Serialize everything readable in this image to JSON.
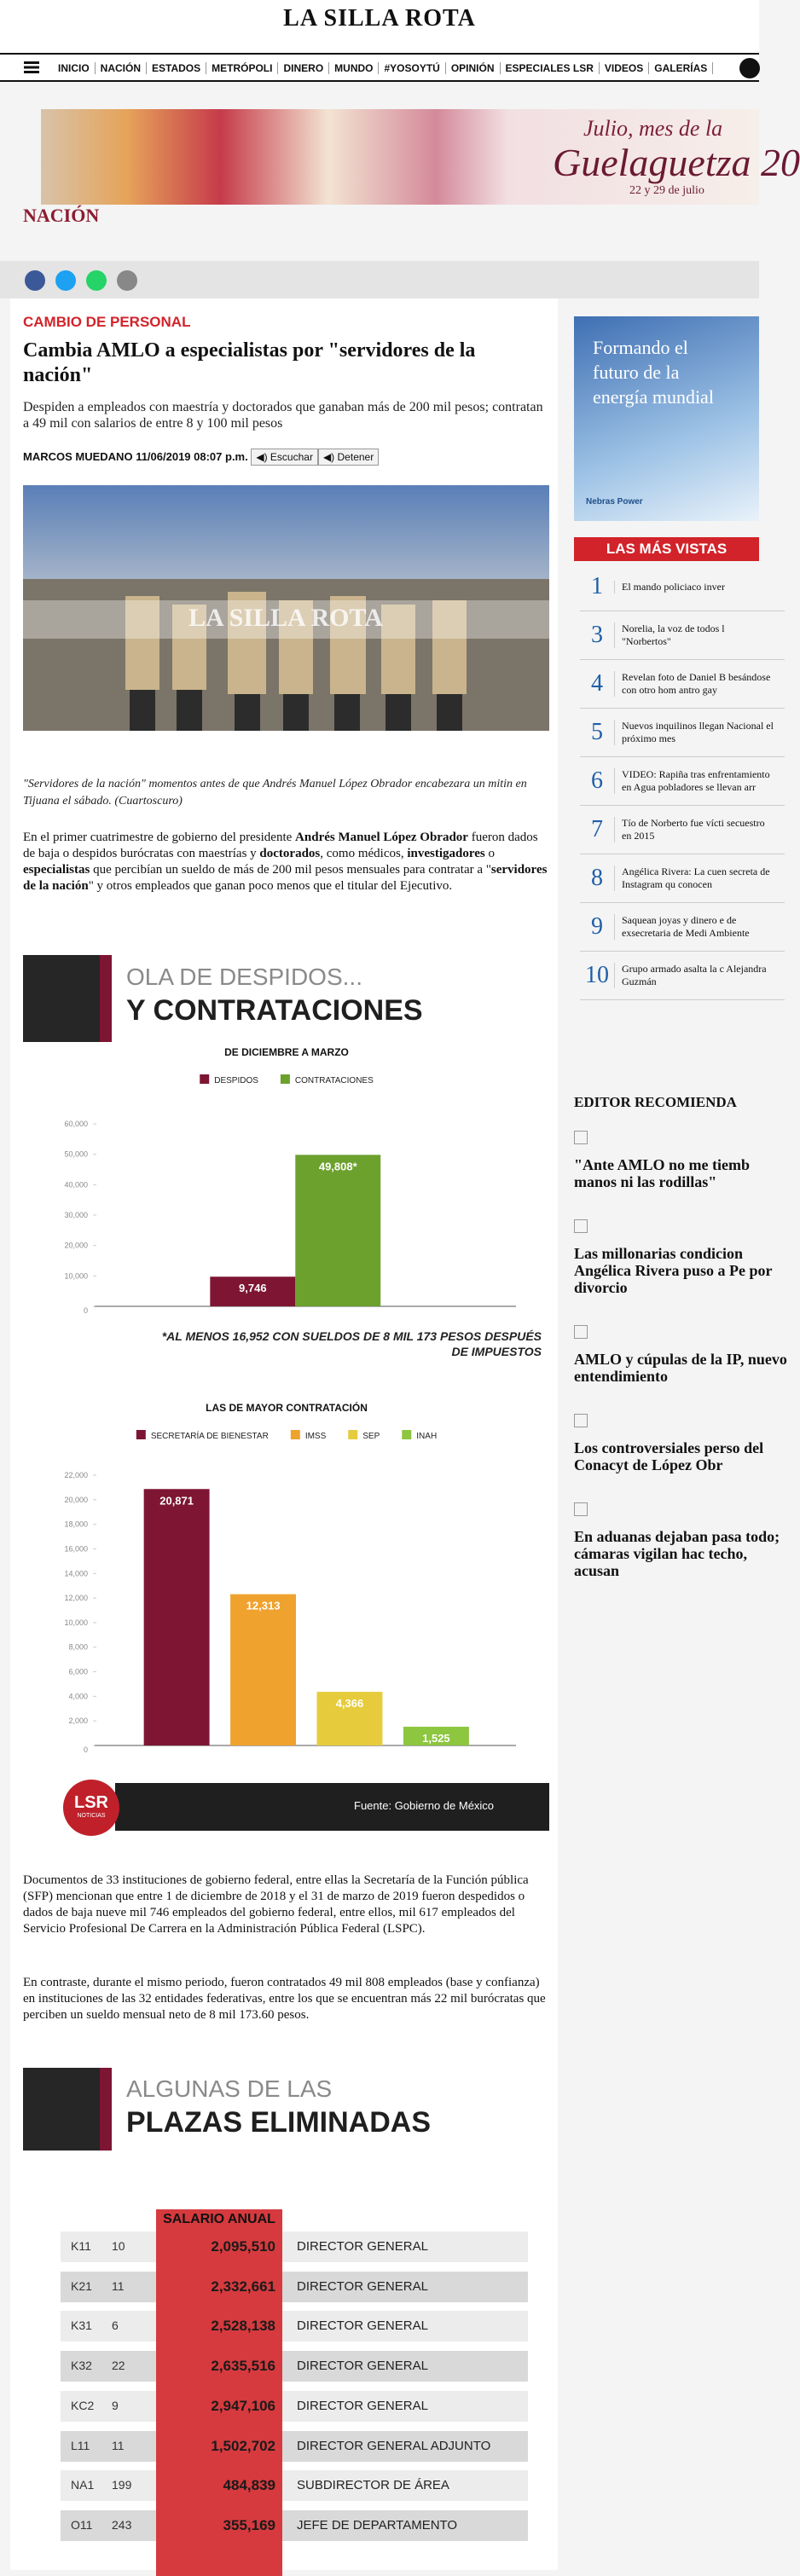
{
  "header": {
    "logo": "LA SILLA ROTA",
    "nav": [
      "INICIO",
      "NACIÓN",
      "ESTADOS",
      "METRÓPOLI",
      "DINERO",
      "MUNDO",
      "#YOSOYTÚ",
      "OPINIÓN",
      "ESPECIALES LSR",
      "VIDEOS",
      "GALERÍAS"
    ]
  },
  "banner": {
    "lines": [
      "Julio, mes de la",
      "Guelaguetza 20",
      "22 y 29 de julio"
    ]
  },
  "section": "NACIÓN",
  "article": {
    "kicker": "CAMBIO DE PERSONAL",
    "title": "Cambia AMLO a especialistas por \"servidores de la nación\"",
    "summary": "Despiden a empleados con maestría y doctorados que ganaban más de 200 mil pesos; contratan a 49 mil con salarios de entre 8 y 100 mil pesos",
    "author": "MARCOS MUEDANO",
    "date": "11/06/2019 08:07 p.m.",
    "buttons": [
      "Escuchar",
      "Detener"
    ],
    "photo_watermark": "LA SILLA ROTA",
    "caption": "\"Servidores de la nación\" momentos antes de que Andrés Manuel López Obrador encabezara un mitin en Tijuana el sábado. (Cuartoscuro)",
    "paragraphs": [
      [
        "En el primer cuatrimestre de gobierno del presidente ",
        "Andrés Manuel López Obrador",
        " fueron dados de baja o despidos burócratas con maestrías y ",
        "doctorados",
        ", como médicos, ",
        "investigadores",
        " o ",
        "especialistas",
        " que percibían un sueldo de más de 200 mil pesos mensuales para contratar a \"",
        "servidores de la nación",
        "\" y otros empleados que ganan poco menos que el titular del Ejecutivo."
      ],
      [
        "Documentos de 33 instituciones de gobierno federal, entre ellas la Secretaría de la Función pública (SFP) mencionan que entre 1 de diciembre de 2018 y el 31 de marzo de 2019 fueron despedidos o dados de baja nueve mil 746 empleados del gobierno federal, entre ellos, mil 617 empleados del Servicio Profesional De Carrera en la Administración Pública Federal (LSPC)."
      ],
      [
        "En contraste, durante el mismo periodo, fueron contratados 49 mil 808 empleados (base y confianza) en instituciones de las 32 entidades federativas, entre los que se encuentran más 22 mil burócratas que perciben un sueldo mensual neto de 8 mil 173.60 pesos."
      ]
    ]
  },
  "infographics": [
    {
      "title": [
        "OLA DE DESPIDOS...",
        "Y CONTRATACIONES"
      ],
      "note": "*AL MENOS 16,952 CON SUELDOS DE 8 MIL 173 PESOS DESPUÉS DE IMPUESTOS",
      "source": "Fuente: Gobierno de México",
      "logo": [
        "LSR",
        "NOTICIAS"
      ]
    },
    {
      "title": [
        "ALGUNAS DE LAS",
        "PLAZAS ELIMINADAS"
      ]
    }
  ],
  "chart_data": [
    {
      "type": "bar",
      "title": "DE DICIEMBRE A MARZO",
      "ylim": [
        0,
        60000
      ],
      "yticks": [
        0,
        {
          "value": 10000,
          "label": "10,000"
        },
        {
          "value": 20000,
          "label": "20,000"
        },
        {
          "value": 30000,
          "label": "30,000"
        },
        {
          "value": 40000,
          "label": "40,000"
        },
        {
          "value": 50000,
          "label": "50,000"
        },
        {
          "value": 60000,
          "label": "60,000"
        }
      ],
      "grid": false,
      "series": [
        {
          "name": "DESPIDOS",
          "color": "#7d1533",
          "values": [
            9746
          ],
          "value_labels": [
            "9,746"
          ]
        },
        {
          "name": "CONTRATACIONES",
          "color": "#6ca12e",
          "values": [
            49808
          ],
          "value_labels": [
            "49,808*"
          ]
        }
      ]
    },
    {
      "type": "bar",
      "title": "LAS DE MAYOR CONTRATACIÓN",
      "ylim": [
        0,
        22000
      ],
      "yticks": [
        0,
        {
          "value": 2000,
          "label": "2,000"
        },
        {
          "value": 4000,
          "label": "4,000"
        },
        {
          "value": 6000,
          "label": "6,000"
        },
        {
          "value": 8000,
          "label": "8,000"
        },
        {
          "value": 10000,
          "label": "10,000"
        },
        {
          "value": 12000,
          "label": "12,000"
        },
        {
          "value": 14000,
          "label": "14,000"
        },
        {
          "value": 16000,
          "label": "16,000"
        },
        {
          "value": 18000,
          "label": "18,000"
        },
        {
          "value": 20000,
          "label": "20,000"
        },
        {
          "value": 22000,
          "label": "22,000"
        }
      ],
      "grid": false,
      "series": [
        {
          "name": "SECRETARÍA DE BIENESTAR",
          "color": "#7d1533",
          "values": [
            20871
          ],
          "value_labels": [
            "20,871"
          ]
        },
        {
          "name": "IMSS",
          "color": "#f0a22e",
          "values": [
            12313
          ],
          "value_labels": [
            "12,313"
          ]
        },
        {
          "name": "SEP",
          "color": "#e6cc3c",
          "values": [
            4366
          ],
          "value_labels": [
            "4,366"
          ]
        },
        {
          "name": "INAH",
          "color": "#8dc63f",
          "values": [
            1525
          ],
          "value_labels": [
            "1,525"
          ]
        }
      ]
    }
  ],
  "table": {
    "header": "SALARIO ANUAL",
    "rows": [
      [
        "K11",
        "10",
        "2,095,510",
        "DIRECTOR GENERAL"
      ],
      [
        "K21",
        "11",
        "2,332,661",
        "DIRECTOR GENERAL"
      ],
      [
        "K31",
        "6",
        "2,528,138",
        "DIRECTOR GENERAL"
      ],
      [
        "K32",
        "22",
        "2,635,516",
        "DIRECTOR GENERAL"
      ],
      [
        "KC2",
        "9",
        "2,947,106",
        "DIRECTOR GENERAL"
      ],
      [
        "L11",
        "11",
        "1,502,702",
        "DIRECTOR GENERAL ADJUNTO"
      ],
      [
        "NA1",
        "199",
        "484,839",
        "SUBDIRECTOR DE ÁREA"
      ],
      [
        "O11",
        "243",
        "355,169",
        "JEFE DE DEPARTAMENTO"
      ]
    ]
  },
  "sidebar": {
    "ad": [
      "Formando el futuro de la energía mundial",
      "Nebras Power"
    ],
    "most_viewed_title": "LAS MÁS VISTAS",
    "most_viewed": [
      {
        "rank": "1",
        "title": "El mando policiaco inver"
      },
      {
        "rank": "3",
        "title": "Norelia, la voz de todos l \"Norbertos\""
      },
      {
        "rank": "4",
        "title": "Revelan foto de Daniel B besándose con otro hom antro gay"
      },
      {
        "rank": "5",
        "title": "Nuevos inquilinos llegan Nacional el próximo mes"
      },
      {
        "rank": "6",
        "title": "VIDEO: Rapiña tras enfrentamiento en Agua pobladores se llevan arr"
      },
      {
        "rank": "7",
        "title": "Tío de Norberto fue vícti secuestro en 2015"
      },
      {
        "rank": "8",
        "title": "Angélica Rivera: La cuen secreta de Instagram qu conocen"
      },
      {
        "rank": "9",
        "title": "Saquean joyas y dinero e de exsecretaria de Medi Ambiente"
      },
      {
        "rank": "10",
        "title": "Grupo armado asalta la c Alejandra Guzmán"
      }
    ],
    "editor_title": "EDITOR RECOMIENDA",
    "editor_picks": [
      "\"Ante AMLO no me tiemb manos ni las rodillas\"",
      "Las millonarias condicion Angélica Rivera puso a Pe por divorcio",
      "AMLO y cúpulas de la IP, nuevo entendimiento",
      "Los controversiales perso del Conacyt de López Obr",
      "En aduanas dejaban pasa todo; cámaras vigilan hac techo, acusan"
    ]
  }
}
